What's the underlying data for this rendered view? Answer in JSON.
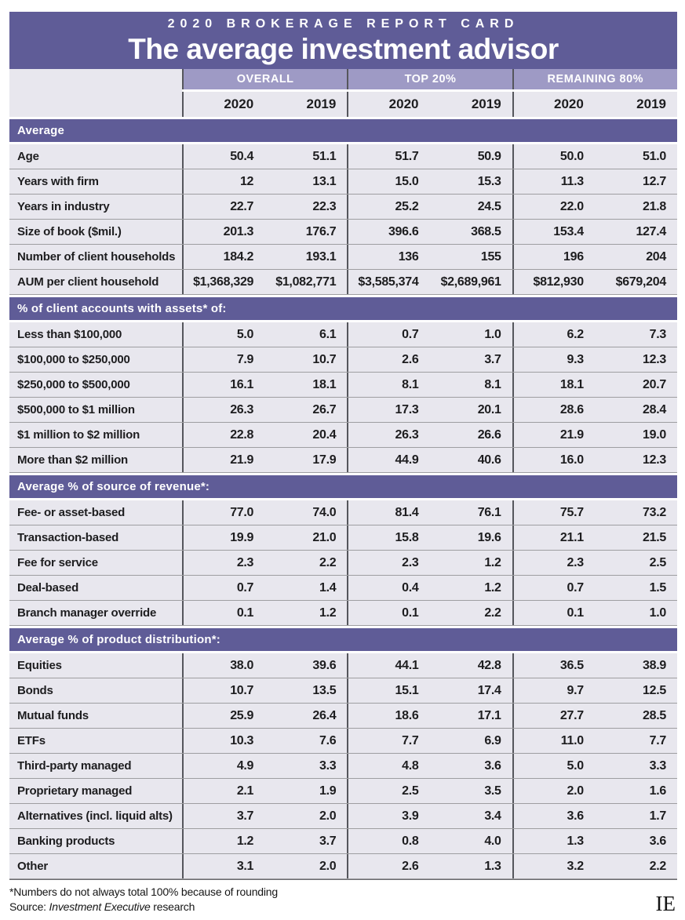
{
  "header": {
    "kicker": "2020 BROKERAGE REPORT CARD",
    "title": "The average investment advisor"
  },
  "chart_data": {
    "type": "table",
    "title": "The average investment advisor",
    "column_groups": [
      "OVERALL",
      "TOP 20%",
      "REMAINING 80%"
    ],
    "year_columns": [
      "2020",
      "2019",
      "2020",
      "2019",
      "2020",
      "2019"
    ],
    "sections": [
      {
        "label": "Average",
        "rows": [
          {
            "label": "Age",
            "values": [
              "50.4",
              "51.1",
              "51.7",
              "50.9",
              "50.0",
              "51.0"
            ]
          },
          {
            "label": "Years with firm",
            "values": [
              "12",
              "13.1",
              "15.0",
              "15.3",
              "11.3",
              "12.7"
            ]
          },
          {
            "label": "Years in industry",
            "values": [
              "22.7",
              "22.3",
              "25.2",
              "24.5",
              "22.0",
              "21.8"
            ]
          },
          {
            "label": "Size of book ($mil.)",
            "values": [
              "201.3",
              "176.7",
              "396.6",
              "368.5",
              "153.4",
              "127.4"
            ]
          },
          {
            "label": "Number of client households",
            "values": [
              "184.2",
              "193.1",
              "136",
              "155",
              "196",
              "204"
            ]
          },
          {
            "label": "AUM per client household",
            "values": [
              "$1,368,329",
              "$1,082,771",
              "$3,585,374",
              "$2,689,961",
              "$812,930",
              "$679,204"
            ]
          }
        ]
      },
      {
        "label": "% of client accounts with assets* of:",
        "rows": [
          {
            "label": "Less than $100,000",
            "values": [
              "5.0",
              "6.1",
              "0.7",
              "1.0",
              "6.2",
              "7.3"
            ]
          },
          {
            "label": "$100,000 to $250,000",
            "values": [
              "7.9",
              "10.7",
              "2.6",
              "3.7",
              "9.3",
              "12.3"
            ]
          },
          {
            "label": "$250,000 to $500,000",
            "values": [
              "16.1",
              "18.1",
              "8.1",
              "8.1",
              "18.1",
              "20.7"
            ]
          },
          {
            "label": "$500,000 to $1 million",
            "values": [
              "26.3",
              "26.7",
              "17.3",
              "20.1",
              "28.6",
              "28.4"
            ]
          },
          {
            "label": "$1 million to $2 million",
            "values": [
              "22.8",
              "20.4",
              "26.3",
              "26.6",
              "21.9",
              "19.0"
            ]
          },
          {
            "label": "More than $2 million",
            "values": [
              "21.9",
              "17.9",
              "44.9",
              "40.6",
              "16.0",
              "12.3"
            ]
          }
        ]
      },
      {
        "label": "Average % of source of revenue*:",
        "rows": [
          {
            "label": "Fee- or asset-based",
            "values": [
              "77.0",
              "74.0",
              "81.4",
              "76.1",
              "75.7",
              "73.2"
            ]
          },
          {
            "label": "Transaction-based",
            "values": [
              "19.9",
              "21.0",
              "15.8",
              "19.6",
              "21.1",
              "21.5"
            ]
          },
          {
            "label": "Fee for service",
            "values": [
              "2.3",
              "2.2",
              "2.3",
              "1.2",
              "2.3",
              "2.5"
            ]
          },
          {
            "label": "Deal-based",
            "values": [
              "0.7",
              "1.4",
              "0.4",
              "1.2",
              "0.7",
              "1.5"
            ]
          },
          {
            "label": "Branch manager override",
            "values": [
              "0.1",
              "1.2",
              "0.1",
              "2.2",
              "0.1",
              "1.0"
            ]
          }
        ]
      },
      {
        "label": "Average % of product distribution*:",
        "rows": [
          {
            "label": "Equities",
            "values": [
              "38.0",
              "39.6",
              "44.1",
              "42.8",
              "36.5",
              "38.9"
            ]
          },
          {
            "label": "Bonds",
            "values": [
              "10.7",
              "13.5",
              "15.1",
              "17.4",
              "9.7",
              "12.5"
            ]
          },
          {
            "label": "Mutual funds",
            "values": [
              "25.9",
              "26.4",
              "18.6",
              "17.1",
              "27.7",
              "28.5"
            ]
          },
          {
            "label": "ETFs",
            "values": [
              "10.3",
              "7.6",
              "7.7",
              "6.9",
              "11.0",
              "7.7"
            ]
          },
          {
            "label": "Third-party managed",
            "values": [
              "4.9",
              "3.3",
              "4.8",
              "3.6",
              "5.0",
              "3.3"
            ]
          },
          {
            "label": "Proprietary managed",
            "values": [
              "2.1",
              "1.9",
              "2.5",
              "3.5",
              "2.0",
              "1.6"
            ]
          },
          {
            "label": "Alternatives (incl. liquid alts)",
            "values": [
              "3.7",
              "2.0",
              "3.9",
              "3.4",
              "3.6",
              "1.7"
            ]
          },
          {
            "label": "Banking products",
            "values": [
              "1.2",
              "3.7",
              "0.8",
              "4.0",
              "1.3",
              "3.6"
            ]
          },
          {
            "label": "Other",
            "values": [
              "3.1",
              "2.0",
              "2.6",
              "1.3",
              "3.2",
              "2.2"
            ]
          }
        ]
      }
    ]
  },
  "footer": {
    "note": "*Numbers do not always total 100% because of rounding",
    "source_prefix": "Source: ",
    "source_italic": "Investment Executive",
    "source_suffix": " research",
    "logo": "IE"
  },
  "colors": {
    "banner_purple": "#5f5c97",
    "group_band": "#9e9ac5",
    "row_background": "#e8e7ee",
    "horizontal_rule": "#9e9ea1",
    "vertical_rule": "#55565c",
    "text": "#1d1d1f"
  }
}
